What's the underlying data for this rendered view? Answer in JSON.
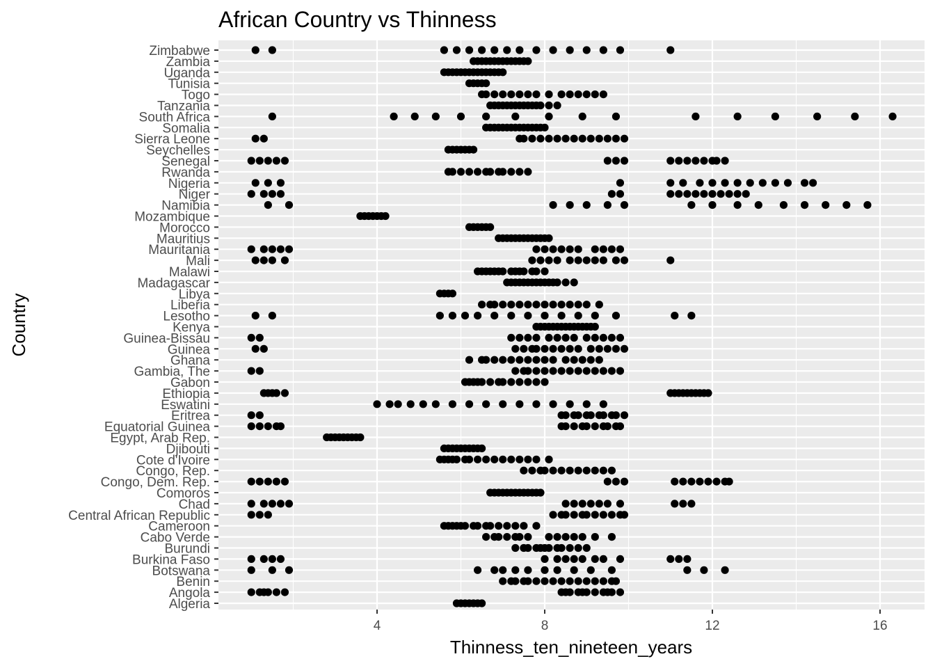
{
  "chart_data": {
    "type": "scatter",
    "title": "African Country vs Thinness",
    "xlabel": "Thinness_ten_nineteen_years",
    "ylabel": "Country",
    "xlim": [
      0.0,
      17.0
    ],
    "x_ticks": [
      4,
      8,
      12,
      16
    ],
    "x_tick_labels": [
      "4",
      "8",
      "12",
      "16"
    ],
    "grid": true,
    "legend": "none",
    "colors": {
      "panel": "#ebebeb",
      "grid": "#ffffff",
      "point": "#000000",
      "text": "#4d4d4d"
    },
    "categories": [
      "Algeria",
      "Angola",
      "Benin",
      "Botswana",
      "Burkina Faso",
      "Burundi",
      "Cabo Verde",
      "Cameroon",
      "Central African Republic",
      "Chad",
      "Comoros",
      "Congo, Dem. Rep.",
      "Congo, Rep.",
      "Cote d'Ivoire",
      "Djibouti",
      "Egypt, Arab Rep.",
      "Equatorial Guinea",
      "Eritrea",
      "Eswatini",
      "Ethiopia",
      "Gabon",
      "Gambia, The",
      "Ghana",
      "Guinea",
      "Guinea-Bissau",
      "Kenya",
      "Lesotho",
      "Liberia",
      "Libya",
      "Madagascar",
      "Malawi",
      "Mali",
      "Mauritania",
      "Mauritius",
      "Morocco",
      "Mozambique",
      "Namibia",
      "Niger",
      "Nigeria",
      "Rwanda",
      "Senegal",
      "Seychelles",
      "Sierra Leone",
      "Somalia",
      "South Africa",
      "Tanzania",
      "Togo",
      "Tunisia",
      "Uganda",
      "Zambia",
      "Zimbabwe"
    ],
    "series": [
      {
        "name": "Algeria",
        "values": [
          5.9,
          6.0,
          6.1,
          6.2,
          6.3,
          6.4,
          6.5
        ]
      },
      {
        "name": "Angola",
        "values": [
          1.0,
          1.2,
          1.3,
          1.4,
          1.6,
          1.8,
          8.4,
          8.5,
          8.6,
          8.8,
          8.9,
          9.0,
          9.2,
          9.4,
          9.5,
          9.6,
          9.8
        ]
      },
      {
        "name": "Benin",
        "values": [
          7.0,
          7.2,
          7.3,
          7.5,
          7.6,
          7.8,
          8.0,
          8.2,
          8.4,
          8.6,
          8.8,
          9.0,
          9.2,
          9.4,
          9.6,
          9.7
        ]
      },
      {
        "name": "Botswana",
        "values": [
          1.0,
          1.5,
          1.9,
          6.4,
          6.8,
          7.0,
          7.3,
          7.6,
          8.0,
          8.3,
          8.7,
          9.1,
          9.6,
          11.4,
          11.8,
          12.3
        ]
      },
      {
        "name": "Burkina Faso",
        "values": [
          1.0,
          1.3,
          1.5,
          1.7,
          8.0,
          8.3,
          8.5,
          8.7,
          8.9,
          9.2,
          9.4,
          9.8,
          11.0,
          11.2,
          11.4
        ]
      },
      {
        "name": "Burundi",
        "values": [
          7.3,
          7.5,
          7.6,
          7.8,
          7.9,
          8.0,
          8.1,
          8.3,
          8.4,
          8.6,
          8.8,
          9.0
        ]
      },
      {
        "name": "Cabo Verde",
        "values": [
          6.6,
          6.8,
          6.9,
          7.1,
          7.3,
          7.4,
          7.6,
          8.1,
          8.3,
          8.5,
          8.7,
          8.9,
          9.2,
          9.6
        ]
      },
      {
        "name": "Cameroon",
        "values": [
          5.6,
          5.7,
          5.8,
          5.9,
          6.0,
          6.1,
          6.3,
          6.4,
          6.6,
          6.7,
          6.9,
          7.1,
          7.3,
          7.5,
          7.8
        ]
      },
      {
        "name": "Central African Republic",
        "values": [
          1.0,
          1.2,
          1.4,
          8.2,
          8.4,
          8.5,
          8.7,
          8.9,
          9.0,
          9.2,
          9.4,
          9.6,
          9.8,
          9.9
        ]
      },
      {
        "name": "Chad",
        "values": [
          1.0,
          1.3,
          1.5,
          1.7,
          1.9,
          8.5,
          8.7,
          8.9,
          9.1,
          9.3,
          9.5,
          9.8,
          11.1,
          11.3,
          11.5
        ]
      },
      {
        "name": "Comoros",
        "values": [
          6.7,
          6.8,
          6.9,
          7.0,
          7.1,
          7.2,
          7.3,
          7.4,
          7.5,
          7.6,
          7.7,
          7.8,
          7.9
        ]
      },
      {
        "name": "Congo, Dem. Rep.",
        "values": [
          1.0,
          1.2,
          1.4,
          1.6,
          1.8,
          9.5,
          9.7,
          9.9,
          11.1,
          11.3,
          11.5,
          11.7,
          11.9,
          12.1,
          12.3,
          12.4
        ]
      },
      {
        "name": "Congo, Rep.",
        "values": [
          7.5,
          7.7,
          7.9,
          8.0,
          8.2,
          8.4,
          8.6,
          8.8,
          9.0,
          9.2,
          9.4,
          9.6
        ]
      },
      {
        "name": "Cote d'Ivoire",
        "values": [
          5.5,
          5.6,
          5.7,
          5.8,
          5.9,
          6.1,
          6.2,
          6.4,
          6.6,
          6.8,
          7.0,
          7.2,
          7.4,
          7.6,
          7.8,
          8.1
        ]
      },
      {
        "name": "Djibouti",
        "values": [
          5.6,
          5.7,
          5.8,
          5.9,
          6.0,
          6.1,
          6.2,
          6.3,
          6.4,
          6.5
        ]
      },
      {
        "name": "Egypt, Arab Rep.",
        "values": [
          2.8,
          2.9,
          3.0,
          3.1,
          3.2,
          3.3,
          3.4,
          3.5,
          3.6
        ]
      },
      {
        "name": "Equatorial Guinea",
        "values": [
          1.0,
          1.2,
          1.4,
          1.6,
          1.7,
          8.4,
          8.5,
          8.7,
          8.9,
          9.0,
          9.2,
          9.4,
          9.5,
          9.7,
          9.8
        ]
      },
      {
        "name": "Eritrea",
        "values": [
          1.0,
          1.2,
          8.4,
          8.5,
          8.7,
          8.8,
          9.0,
          9.1,
          9.3,
          9.4,
          9.6,
          9.7,
          9.9
        ]
      },
      {
        "name": "Eswatini",
        "values": [
          4.0,
          4.3,
          4.5,
          4.8,
          5.1,
          5.4,
          5.8,
          6.2,
          6.6,
          7.0,
          7.4,
          7.8,
          8.2,
          8.6,
          9.0,
          9.4
        ]
      },
      {
        "name": "Ethiopia",
        "values": [
          1.3,
          1.4,
          1.5,
          1.6,
          1.8,
          11.0,
          11.1,
          11.2,
          11.3,
          11.4,
          11.5,
          11.6,
          11.7,
          11.8,
          11.9
        ]
      },
      {
        "name": "Gabon",
        "values": [
          6.1,
          6.2,
          6.3,
          6.4,
          6.5,
          6.7,
          6.9,
          7.0,
          7.2,
          7.4,
          7.6,
          7.8,
          8.0
        ]
      },
      {
        "name": "Gambia, The",
        "values": [
          1.0,
          1.2,
          7.3,
          7.5,
          7.6,
          7.8,
          8.0,
          8.2,
          8.4,
          8.6,
          8.8,
          9.0,
          9.2,
          9.4,
          9.6,
          9.8
        ]
      },
      {
        "name": "Ghana",
        "values": [
          6.2,
          6.5,
          6.6,
          6.8,
          7.0,
          7.2,
          7.4,
          7.6,
          7.8,
          8.0,
          8.2,
          8.5,
          8.7,
          8.9,
          9.1,
          9.3
        ]
      },
      {
        "name": "Guinea",
        "values": [
          1.1,
          1.3,
          7.3,
          7.5,
          7.7,
          7.8,
          8.0,
          8.2,
          8.4,
          8.6,
          8.8,
          9.1,
          9.3,
          9.5,
          9.7,
          9.9
        ]
      },
      {
        "name": "Guinea-Bissau",
        "values": [
          1.0,
          1.2,
          7.2,
          7.4,
          7.6,
          7.8,
          8.1,
          8.3,
          8.5,
          8.7,
          9.0,
          9.2,
          9.4,
          9.6,
          9.8
        ]
      },
      {
        "name": "Kenya",
        "values": [
          7.8,
          7.9,
          8.0,
          8.1,
          8.2,
          8.3,
          8.4,
          8.5,
          8.6,
          8.7,
          8.8,
          8.9,
          9.0,
          9.1,
          9.2
        ]
      },
      {
        "name": "Lesotho",
        "values": [
          1.1,
          1.5,
          5.5,
          5.8,
          6.1,
          6.4,
          6.8,
          7.2,
          7.6,
          8.0,
          8.4,
          8.8,
          9.2,
          9.7,
          11.1,
          11.5
        ]
      },
      {
        "name": "Liberia",
        "values": [
          6.5,
          6.7,
          6.8,
          7.0,
          7.2,
          7.4,
          7.6,
          7.8,
          8.0,
          8.2,
          8.4,
          8.6,
          8.8,
          9.0,
          9.3
        ]
      },
      {
        "name": "Libya",
        "values": [
          5.5,
          5.6,
          5.7,
          5.8
        ]
      },
      {
        "name": "Madagascar",
        "values": [
          7.1,
          7.2,
          7.3,
          7.4,
          7.5,
          7.6,
          7.7,
          7.8,
          7.9,
          8.0,
          8.1,
          8.2,
          8.3,
          8.5,
          8.7
        ]
      },
      {
        "name": "Malawi",
        "values": [
          6.4,
          6.5,
          6.6,
          6.7,
          6.8,
          6.9,
          7.0,
          7.2,
          7.3,
          7.4,
          7.5,
          7.7,
          7.8,
          8.0
        ]
      },
      {
        "name": "Mali",
        "values": [
          1.1,
          1.3,
          1.5,
          1.8,
          7.7,
          7.9,
          8.1,
          8.3,
          8.6,
          8.8,
          9.0,
          9.2,
          9.4,
          9.7,
          9.9,
          11.0
        ]
      },
      {
        "name": "Mauritania",
        "values": [
          1.0,
          1.3,
          1.5,
          1.7,
          1.9,
          7.8,
          8.0,
          8.2,
          8.4,
          8.6,
          8.8,
          9.2,
          9.4,
          9.6,
          9.8
        ]
      },
      {
        "name": "Mauritius",
        "values": [
          6.9,
          7.0,
          7.1,
          7.2,
          7.3,
          7.4,
          7.5,
          7.6,
          7.7,
          7.8,
          7.9,
          8.0,
          8.1
        ]
      },
      {
        "name": "Morocco",
        "values": [
          6.2,
          6.3,
          6.4,
          6.5,
          6.6,
          6.7
        ]
      },
      {
        "name": "Mozambique",
        "values": [
          3.6,
          3.7,
          3.8,
          3.9,
          4.0,
          4.1,
          4.2
        ]
      },
      {
        "name": "Namibia",
        "values": [
          1.4,
          1.9,
          8.2,
          8.6,
          9.0,
          9.5,
          9.9,
          11.5,
          12.0,
          12.6,
          13.1,
          13.7,
          14.2,
          14.7,
          15.2,
          15.7
        ]
      },
      {
        "name": "Niger",
        "values": [
          1.0,
          1.3,
          1.5,
          1.7,
          9.6,
          9.8,
          11.0,
          11.2,
          11.4,
          11.6,
          11.8,
          12.0,
          12.2,
          12.4,
          12.6,
          12.8
        ]
      },
      {
        "name": "Nigeria",
        "values": [
          1.1,
          1.4,
          1.7,
          9.8,
          11.0,
          11.3,
          11.7,
          12.0,
          12.3,
          12.6,
          12.9,
          13.2,
          13.5,
          13.8,
          14.2,
          14.4
        ]
      },
      {
        "name": "Rwanda",
        "values": [
          5.7,
          5.8,
          6.0,
          6.2,
          6.4,
          6.6,
          6.7,
          6.9,
          7.0,
          7.2,
          7.4,
          7.6
        ]
      },
      {
        "name": "Senegal",
        "values": [
          1.0,
          1.2,
          1.4,
          1.6,
          1.8,
          9.5,
          9.7,
          9.9,
          11.0,
          11.2,
          11.4,
          11.6,
          11.8,
          12.0,
          12.1,
          12.3
        ]
      },
      {
        "name": "Seychelles",
        "values": [
          5.7,
          5.8,
          5.9,
          6.0,
          6.1,
          6.2,
          6.3
        ]
      },
      {
        "name": "Sierra Leone",
        "values": [
          1.1,
          1.3,
          7.4,
          7.5,
          7.7,
          7.9,
          8.1,
          8.3,
          8.5,
          8.7,
          8.9,
          9.1,
          9.3,
          9.5,
          9.7,
          9.9
        ]
      },
      {
        "name": "Somalia",
        "values": [
          6.6,
          6.7,
          6.8,
          6.9,
          7.0,
          7.1,
          7.2,
          7.3,
          7.4,
          7.5,
          7.6,
          7.7,
          7.8,
          7.9,
          8.0
        ]
      },
      {
        "name": "South Africa",
        "values": [
          1.5,
          4.4,
          4.9,
          5.4,
          6.0,
          6.6,
          7.3,
          8.1,
          8.9,
          9.7,
          11.6,
          12.6,
          13.5,
          14.5,
          15.4,
          16.3
        ]
      },
      {
        "name": "Tanzania",
        "values": [
          6.7,
          6.8,
          6.9,
          7.0,
          7.1,
          7.2,
          7.3,
          7.4,
          7.5,
          7.6,
          7.7,
          7.8,
          7.9,
          8.1,
          8.3
        ]
      },
      {
        "name": "Togo",
        "values": [
          6.5,
          6.6,
          6.8,
          7.0,
          7.2,
          7.4,
          7.6,
          7.8,
          8.1,
          8.4,
          8.6,
          8.8,
          9.0,
          9.2,
          9.4
        ]
      },
      {
        "name": "Tunisia",
        "values": [
          6.2,
          6.3,
          6.4,
          6.5,
          6.6
        ]
      },
      {
        "name": "Uganda",
        "values": [
          5.6,
          5.7,
          5.8,
          5.9,
          6.0,
          6.1,
          6.2,
          6.3,
          6.4,
          6.5,
          6.6,
          6.7,
          6.8,
          6.9,
          7.0
        ]
      },
      {
        "name": "Zambia",
        "values": [
          6.3,
          6.4,
          6.5,
          6.6,
          6.7,
          6.8,
          6.9,
          7.0,
          7.1,
          7.2,
          7.3,
          7.4,
          7.5,
          7.6
        ]
      },
      {
        "name": "Zimbabwe",
        "values": [
          1.1,
          1.5,
          5.6,
          5.9,
          6.2,
          6.5,
          6.8,
          7.1,
          7.4,
          7.8,
          8.2,
          8.6,
          9.0,
          9.4,
          9.8,
          11.0
        ]
      }
    ]
  }
}
